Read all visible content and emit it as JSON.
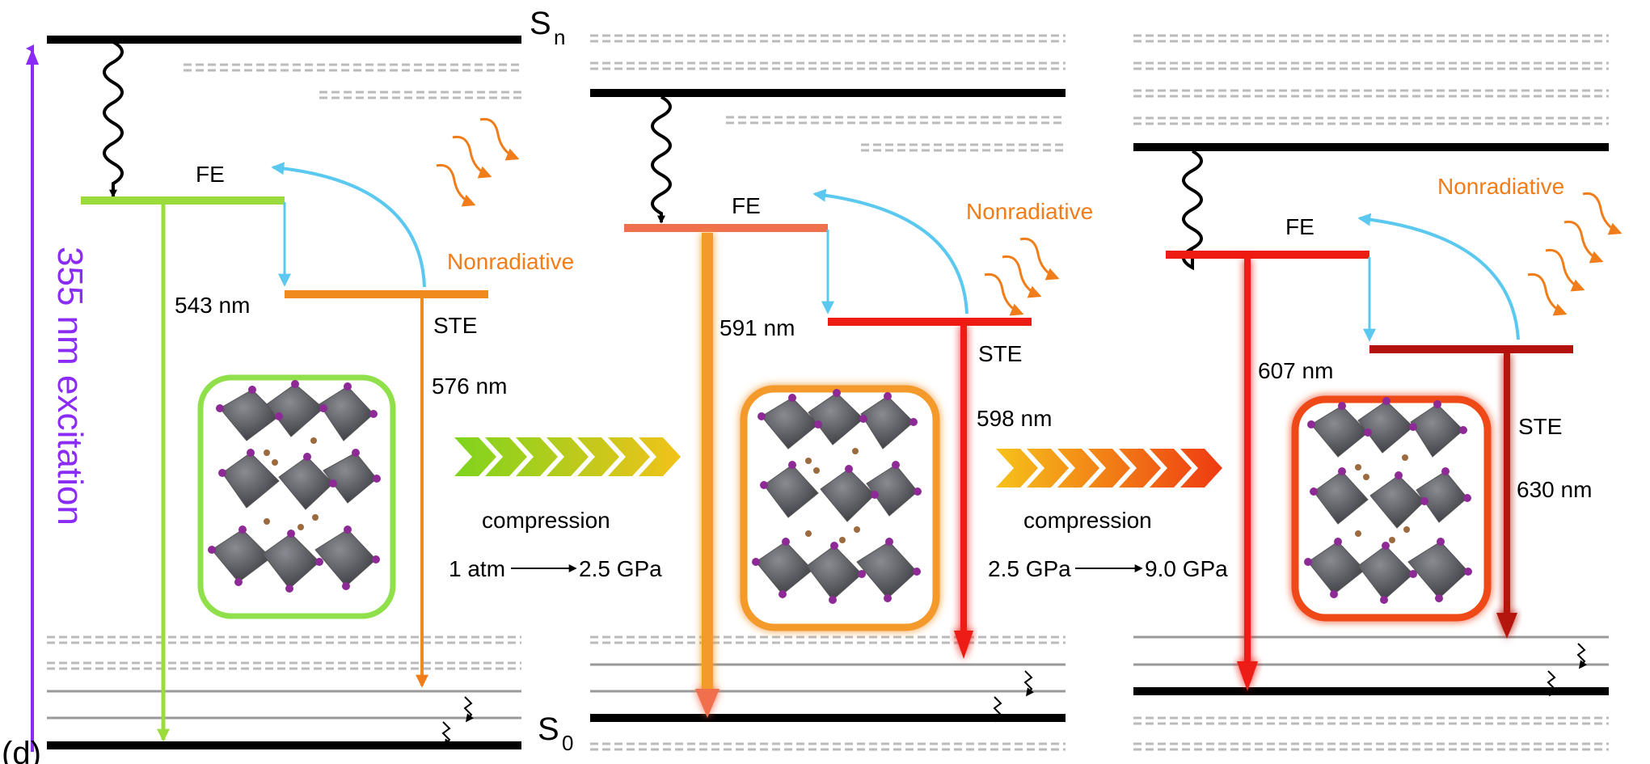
{
  "panel_label": "(d)",
  "excitation_label": "355 nm excitation",
  "levels": {
    "sn_main": "S",
    "sn_sub": "n",
    "s0_main": "S",
    "s0_sub": "0"
  },
  "panels": [
    {
      "fe_label": "FE",
      "fe_wavelength": "543 nm",
      "ste_label": "STE",
      "ste_wavelength": "576 nm",
      "nonradiative_label": "Nonradiative"
    },
    {
      "fe_label": "FE",
      "fe_wavelength": "591 nm",
      "ste_label": "STE",
      "ste_wavelength": "598 nm",
      "nonradiative_label": "Nonradiative"
    },
    {
      "fe_label": "FE",
      "fe_wavelength": "607 nm",
      "ste_label": "STE",
      "ste_wavelength": "630 nm",
      "nonradiative_label": "Nonradiative"
    }
  ],
  "transitions": [
    {
      "label": "compression",
      "from_pressure": "1 atm",
      "to_pressure": "2.5 GPa"
    },
    {
      "label": "compression",
      "from_pressure": "2.5 GPa",
      "to_pressure": "9.0 GPa"
    }
  ],
  "colors": {
    "excitation": "#8b2cf5",
    "relaxation": "#5bc8ef",
    "nonradiative": "#f07d1a",
    "panel1_fe": "#9bdc3c",
    "panel1_ste": "#f08a1e",
    "panel2_fe": "#f0704e",
    "panel2_ste": "#ee1b12",
    "panel3_fe": "#ee1b12",
    "panel3_ste": "#b4120f"
  }
}
